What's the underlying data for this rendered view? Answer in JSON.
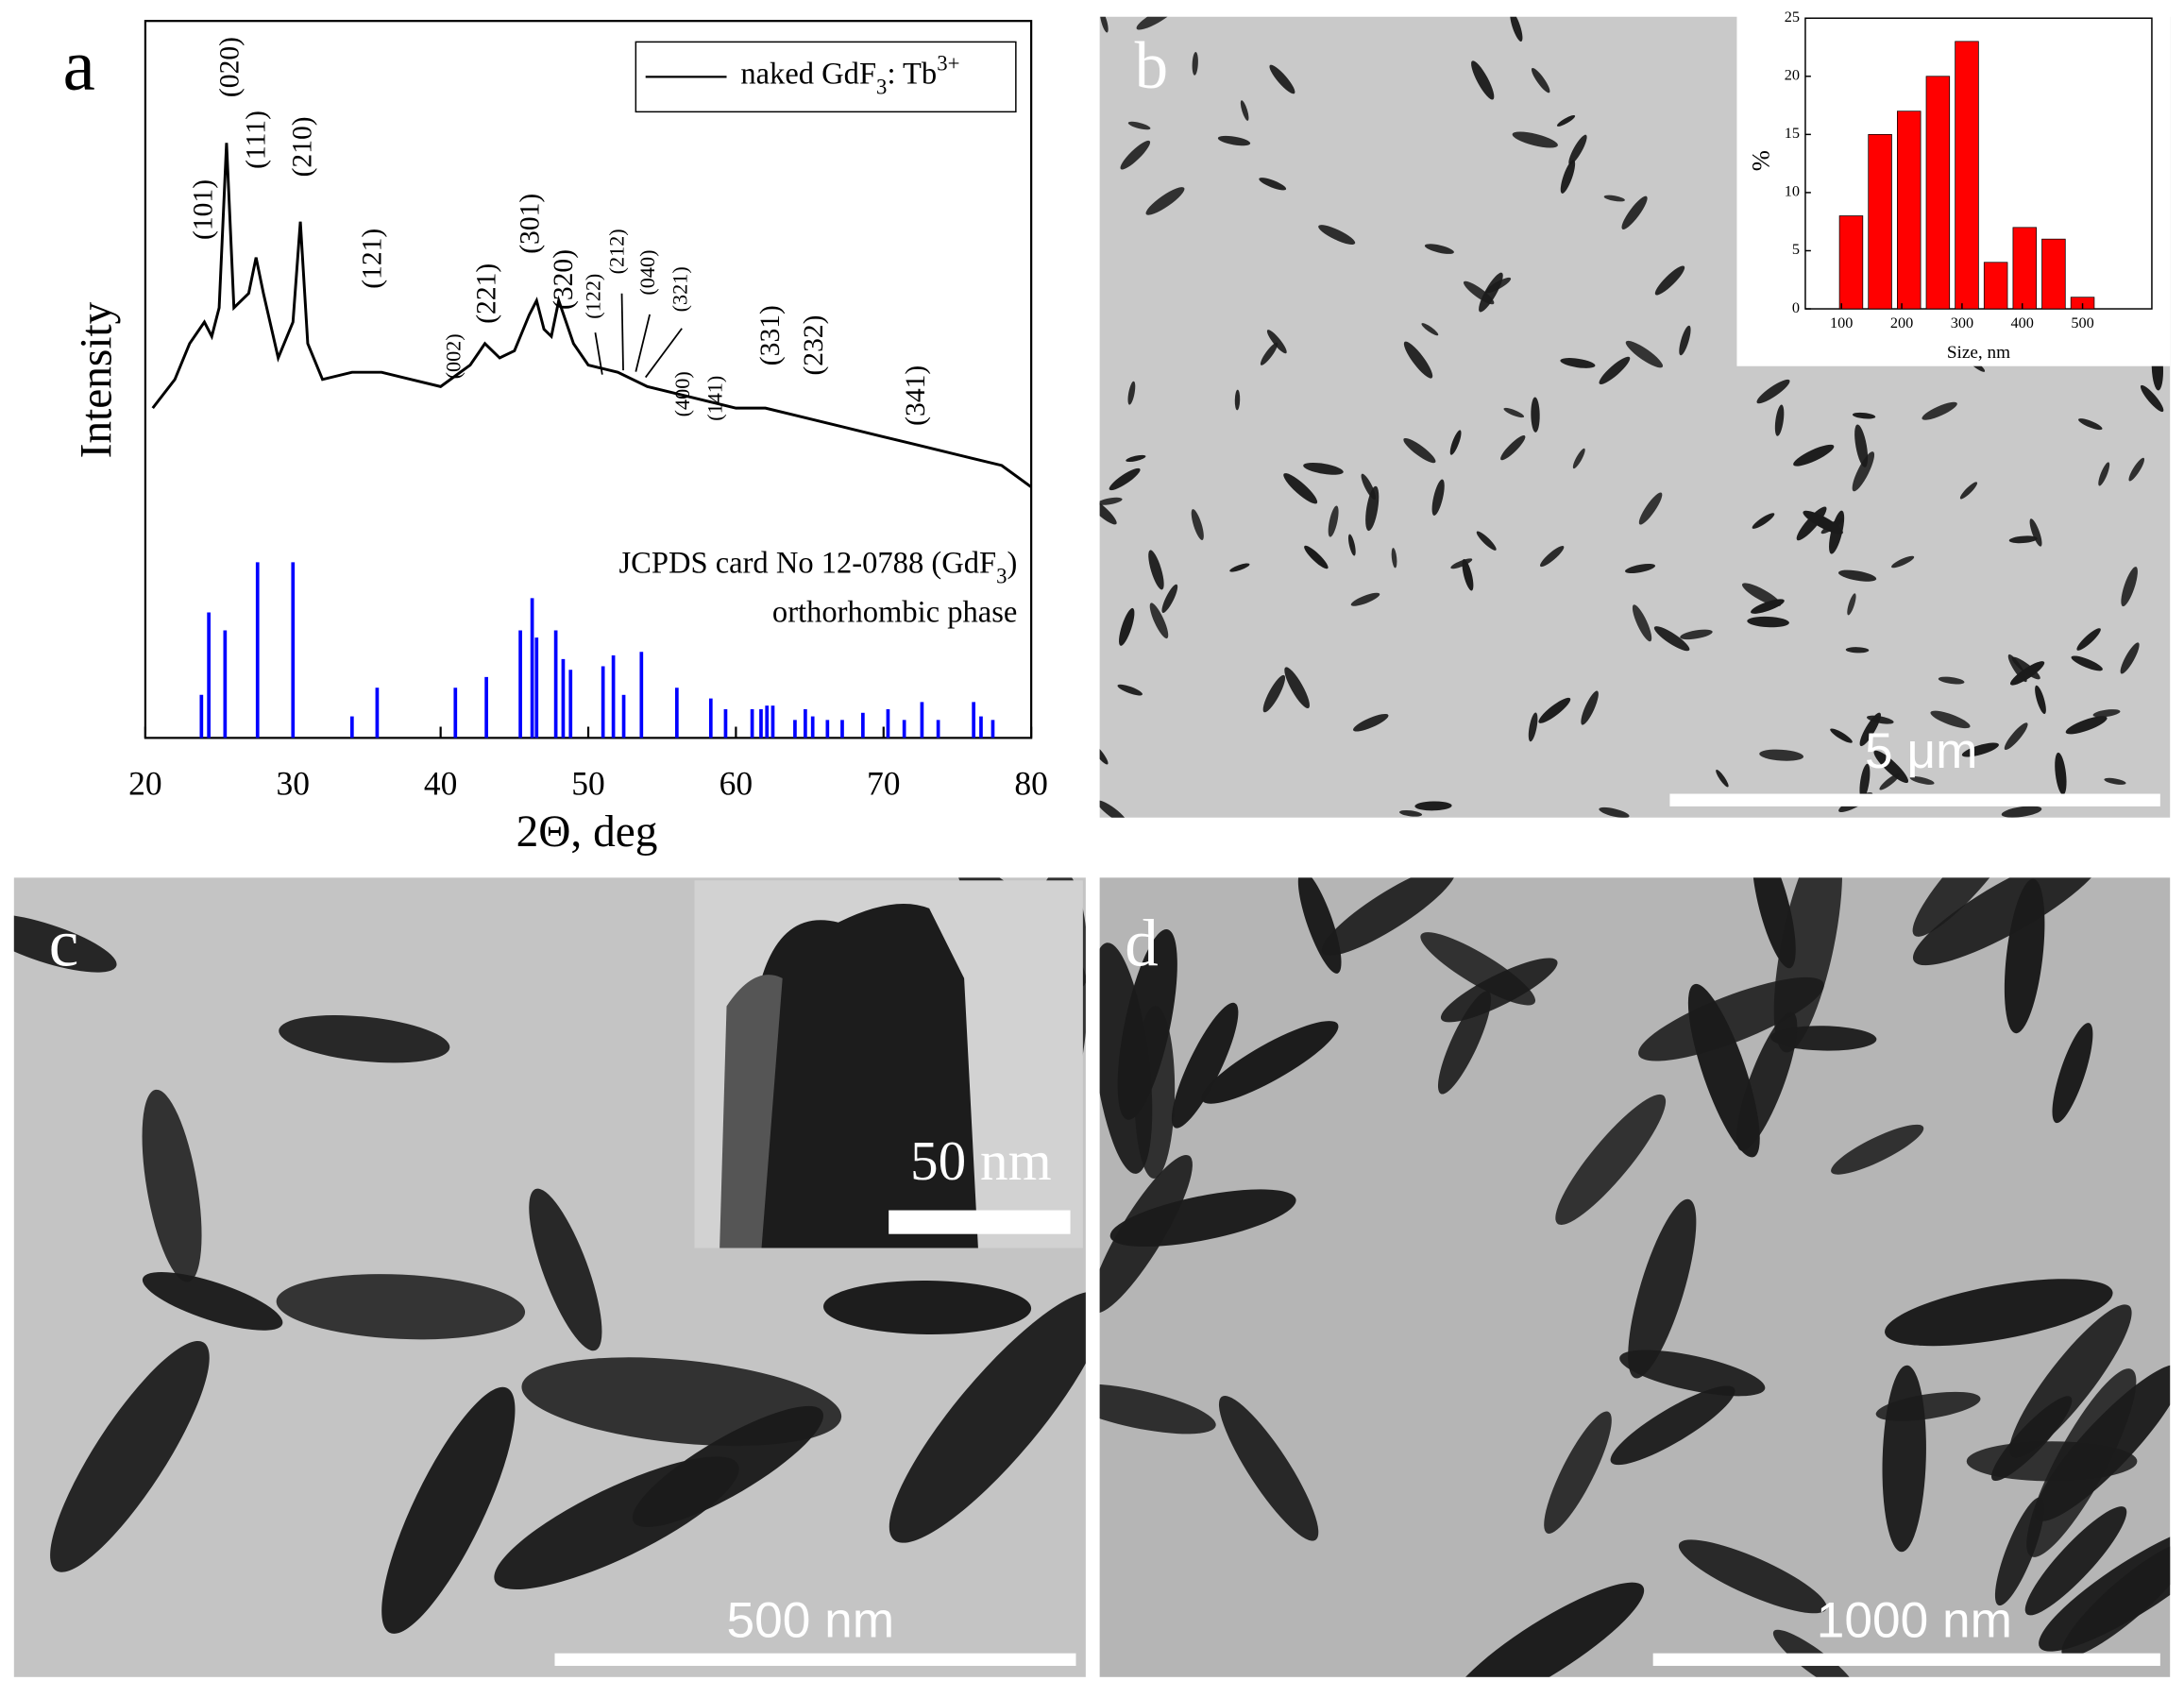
{
  "chart_data": [
    {
      "type": "line",
      "panel_label": "a",
      "xlabel": "2Θ, deg",
      "ylabel": "Intensity",
      "xlim": [
        20,
        80
      ],
      "xticks": [
        20,
        30,
        40,
        50,
        60,
        70,
        80
      ],
      "ylim": [
        0,
        100
      ],
      "series": [
        {
          "name_parts": [
            "naked GdF",
            "3",
            ": Tb",
            "3+"
          ],
          "color": "#000000",
          "x": [
            20.5,
            22,
            23,
            24,
            24.5,
            25,
            25.5,
            26,
            27,
            27.5,
            28,
            29,
            30,
            30.5,
            31,
            32,
            34,
            36,
            38,
            40,
            42,
            43,
            44,
            45,
            46,
            46.5,
            47,
            47.5,
            48,
            49,
            50,
            52,
            54,
            56,
            58,
            60,
            62,
            64,
            66,
            68,
            70,
            72,
            74,
            76,
            78,
            80
          ],
          "values": [
            46,
            50,
            55,
            58,
            56,
            60,
            83,
            60,
            62,
            67,
            62,
            53,
            58,
            72,
            55,
            50,
            51,
            51,
            50,
            49,
            52,
            55,
            53,
            54,
            59,
            61,
            57,
            56,
            61,
            55,
            52,
            51,
            49,
            48,
            47,
            46,
            46,
            45,
            44,
            43,
            42,
            41,
            40,
            39,
            38,
            35
          ]
        },
        {
          "name_parts": [
            "JCPDS card No 12-0788 (GdF",
            "3",
            ")"
          ],
          "style": "stick",
          "color": "#0000ff",
          "x": [
            23.8,
            24.3,
            25.4,
            27.6,
            30,
            34,
            35.7,
            41,
            43.1,
            45.4,
            46.2,
            46.5,
            47.8,
            48.3,
            48.8,
            51,
            51.7,
            52.4,
            53.6,
            56,
            58.3,
            59.3,
            61.1,
            61.7,
            62.1,
            62.5,
            64,
            64.7,
            65.2,
            66.2,
            67.2,
            68.6,
            70.3,
            71.4,
            72.6,
            73.7,
            76.1,
            76.6,
            77.4
          ],
          "values": [
            6,
            17.5,
            15,
            24.5,
            24.5,
            3,
            7,
            7,
            8.5,
            15,
            19.5,
            14,
            15,
            11,
            9.5,
            10,
            11.5,
            6,
            12,
            7,
            5.5,
            4,
            4,
            4,
            4.5,
            4.5,
            2.5,
            4,
            3,
            2.5,
            2.5,
            3.5,
            4,
            2.5,
            5,
            2.5,
            5,
            3,
            2.5
          ]
        }
      ],
      "annotations": [
        "orthorhombic phase"
      ],
      "peak_labels": [
        "(101)",
        "(020)",
        "(111)",
        "(210)",
        "(121)",
        "(002)",
        "(221)",
        "(301)",
        "(320)",
        "(122)",
        "(212)",
        "(040)",
        "(321)",
        "(400)",
        "(141)",
        "(331)",
        "(232)",
        "(341)"
      ]
    },
    {
      "type": "histogram",
      "xlabel": "Size, nm",
      "ylabel": "%",
      "color": "#ff0000",
      "bins": [
        92,
        140,
        188,
        236,
        284,
        332,
        380,
        428,
        476,
        524
      ],
      "values": [
        8,
        15,
        17,
        20,
        23,
        4,
        7,
        6,
        1
      ],
      "xlim": [
        40,
        615
      ],
      "xticks": [
        100,
        200,
        300,
        400,
        500
      ],
      "ylim": [
        0,
        25
      ],
      "yticks": [
        0,
        5,
        10,
        15,
        20,
        25
      ]
    }
  ],
  "images": [
    {
      "label": "b",
      "scale_bar": "5 μm"
    },
    {
      "label": "c",
      "scale_bar": "500 nm",
      "inset_scale_bar": "50 nm"
    },
    {
      "label": "d",
      "scale_bar": "1000 nm"
    }
  ]
}
